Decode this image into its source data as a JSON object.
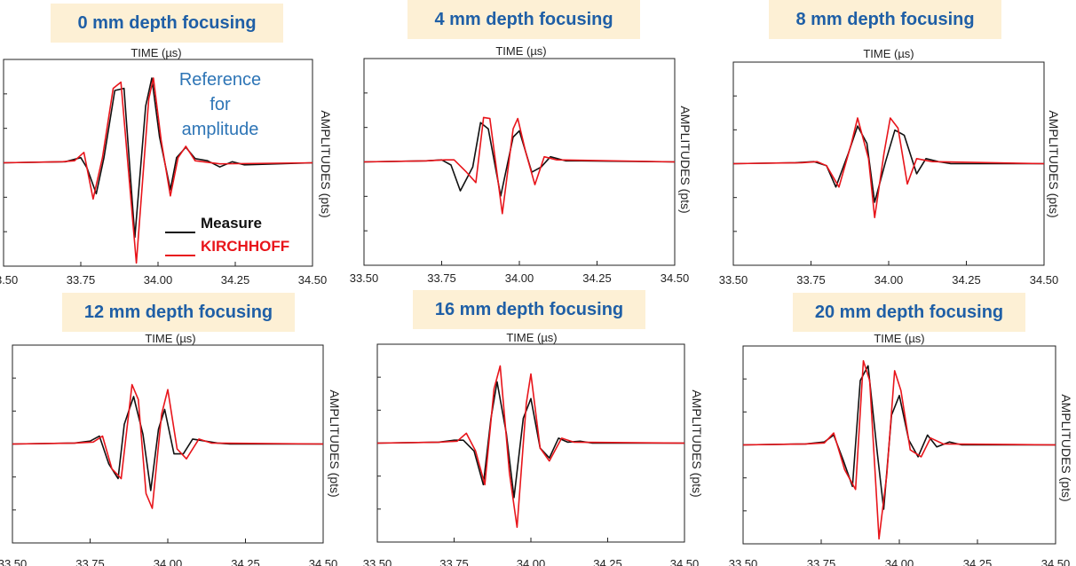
{
  "axis": {
    "x_label": "TIME (µs)",
    "y_label": "AMPLITUDES (pts)",
    "x_ticks": [
      "33.50",
      "33.75",
      "34.00",
      "34.25",
      "34.50"
    ]
  },
  "legend": {
    "measure_label": "Measure",
    "kirchhoff_label": "KIRCHHOFF",
    "measure_color": "#111111",
    "kirchhoff_color": "#e8151b"
  },
  "annotation": "Reference\nfor\namplitude",
  "chart_data": [
    {
      "type": "line",
      "title": "0 mm depth focusing",
      "xlim": [
        33.5,
        34.5
      ],
      "ylim": [
        -1,
        1
      ],
      "series": [
        {
          "name": "Measure",
          "x": [
            33.5,
            33.7,
            33.75,
            33.77,
            33.8,
            33.825,
            33.86,
            33.89,
            33.925,
            33.96,
            33.98,
            34.005,
            34.04,
            34.06,
            34.09,
            34.12,
            34.16,
            34.2,
            34.24,
            34.28,
            34.5
          ],
          "y": [
            0,
            0.01,
            0.05,
            -0.05,
            -0.3,
            0.05,
            0.7,
            0.72,
            -0.72,
            0.55,
            0.82,
            0.25,
            -0.26,
            0.05,
            0.15,
            0.04,
            0.02,
            -0.04,
            0.01,
            -0.02,
            0
          ]
        },
        {
          "name": "KIRCHHOFF",
          "x": [
            33.5,
            33.69,
            33.73,
            33.76,
            33.79,
            33.82,
            33.855,
            33.88,
            33.93,
            33.97,
            33.985,
            34.01,
            34.04,
            34.065,
            34.09,
            34.12,
            34.2,
            34.5
          ],
          "y": [
            0,
            0.01,
            0.02,
            0.1,
            -0.35,
            0.05,
            0.72,
            0.78,
            -0.97,
            0.62,
            0.82,
            0.22,
            -0.32,
            0.05,
            0.16,
            0.02,
            -0.01,
            0
          ]
        }
      ]
    },
    {
      "type": "line",
      "title": "4 mm depth focusing",
      "xlim": [
        33.5,
        34.5
      ],
      "ylim": [
        -1,
        1
      ],
      "series": [
        {
          "name": "Measure",
          "x": [
            33.5,
            33.7,
            33.75,
            33.78,
            33.81,
            33.85,
            33.875,
            33.9,
            33.94,
            33.98,
            34.0,
            34.04,
            34.07,
            34.1,
            34.15,
            34.2,
            34.5
          ],
          "y": [
            0,
            0.01,
            0.02,
            -0.03,
            -0.28,
            -0.05,
            0.38,
            0.32,
            -0.33,
            0.24,
            0.3,
            -0.1,
            -0.05,
            0.05,
            0.01,
            0.01,
            0
          ]
        },
        {
          "name": "KIRCHHOFF",
          "x": [
            33.5,
            33.7,
            33.76,
            33.79,
            33.83,
            33.86,
            33.885,
            33.905,
            33.945,
            33.98,
            33.995,
            34.02,
            34.05,
            34.08,
            34.12,
            34.5
          ],
          "y": [
            0,
            0.01,
            0.02,
            0.02,
            -0.1,
            -0.2,
            0.43,
            0.42,
            -0.5,
            0.32,
            0.42,
            0.1,
            -0.22,
            0.05,
            0.02,
            0
          ]
        }
      ]
    },
    {
      "type": "line",
      "title": "8 mm depth focusing",
      "xlim": [
        33.5,
        34.5
      ],
      "ylim": [
        -1,
        1
      ],
      "series": [
        {
          "name": "Measure",
          "x": [
            33.5,
            33.7,
            33.76,
            33.8,
            33.83,
            33.87,
            33.9,
            33.93,
            33.955,
            33.99,
            34.02,
            34.05,
            34.09,
            34.12,
            34.16,
            34.2,
            34.5
          ],
          "y": [
            0,
            0.01,
            0.02,
            -0.02,
            -0.23,
            0.1,
            0.37,
            0.2,
            -0.38,
            0.02,
            0.33,
            0.28,
            -0.1,
            0.05,
            0.02,
            0,
            0
          ]
        },
        {
          "name": "KIRCHHOFF",
          "x": [
            33.5,
            33.72,
            33.77,
            33.8,
            33.84,
            33.88,
            33.9,
            33.935,
            33.955,
            33.985,
            34.005,
            34.03,
            34.06,
            34.09,
            34.14,
            34.5
          ],
          "y": [
            0,
            0.01,
            0.02,
            -0.02,
            -0.23,
            0.2,
            0.45,
            0.05,
            -0.53,
            0.1,
            0.45,
            0.35,
            -0.2,
            0.05,
            0.02,
            0
          ]
        }
      ]
    },
    {
      "type": "line",
      "title": "12 mm depth focusing",
      "xlim": [
        33.5,
        34.5
      ],
      "ylim": [
        -1,
        1
      ],
      "series": [
        {
          "name": "Measure",
          "x": [
            33.5,
            33.7,
            33.75,
            33.78,
            33.81,
            33.84,
            33.86,
            33.89,
            33.92,
            33.945,
            33.97,
            33.99,
            34.02,
            34.05,
            34.08,
            34.12,
            34.16,
            34.2,
            34.5
          ],
          "y": [
            0,
            0.01,
            0.03,
            0.08,
            -0.2,
            -0.35,
            0.2,
            0.48,
            0.1,
            -0.47,
            0.15,
            0.35,
            -0.1,
            -0.1,
            0.05,
            0.03,
            0.01,
            0,
            0
          ]
        },
        {
          "name": "KIRCHHOFF",
          "x": [
            33.5,
            33.7,
            33.76,
            33.79,
            33.82,
            33.85,
            33.885,
            33.905,
            33.93,
            33.95,
            33.98,
            34.0,
            34.03,
            34.06,
            34.1,
            34.14,
            34.5
          ],
          "y": [
            0,
            0.01,
            0.02,
            0.08,
            -0.25,
            -0.35,
            0.6,
            0.45,
            -0.5,
            -0.65,
            0.3,
            0.55,
            -0.05,
            -0.15,
            0.05,
            0.01,
            0
          ]
        }
      ]
    },
    {
      "type": "line",
      "title": "16 mm depth focusing",
      "xlim": [
        33.5,
        34.5
      ],
      "ylim": [
        -1,
        1
      ],
      "series": [
        {
          "name": "Measure",
          "x": [
            33.5,
            33.7,
            33.75,
            33.78,
            33.815,
            33.845,
            33.87,
            33.89,
            33.92,
            33.945,
            33.975,
            34.0,
            34.03,
            34.06,
            34.09,
            34.12,
            34.16,
            34.2,
            34.5
          ],
          "y": [
            0,
            0.01,
            0.03,
            0.03,
            -0.08,
            -0.42,
            0.25,
            0.62,
            0.1,
            -0.55,
            0.25,
            0.45,
            -0.05,
            -0.15,
            0.05,
            0.01,
            0.02,
            0,
            0
          ]
        },
        {
          "name": "KIRCHHOFF",
          "x": [
            33.5,
            33.7,
            33.76,
            33.79,
            33.82,
            33.85,
            33.88,
            33.9,
            33.93,
            33.955,
            33.985,
            34.0,
            34.03,
            34.06,
            34.1,
            34.14,
            34.5
          ],
          "y": [
            0,
            0.01,
            0.02,
            0.1,
            -0.08,
            -0.42,
            0.55,
            0.78,
            -0.3,
            -0.85,
            0.4,
            0.7,
            -0.05,
            -0.18,
            0.05,
            0.01,
            0
          ]
        }
      ]
    },
    {
      "type": "line",
      "title": "20 mm depth focusing",
      "xlim": [
        33.5,
        34.5
      ],
      "ylim": [
        -1,
        1
      ],
      "series": [
        {
          "name": "Measure",
          "x": [
            33.5,
            33.7,
            33.76,
            33.79,
            33.82,
            33.85,
            33.875,
            33.9,
            33.93,
            33.95,
            33.975,
            34.0,
            34.03,
            34.06,
            34.09,
            34.12,
            34.16,
            34.2,
            34.5
          ],
          "y": [
            0,
            0.01,
            0.03,
            0.1,
            -0.15,
            -0.42,
            0.65,
            0.8,
            -0.1,
            -0.65,
            0.3,
            0.5,
            0.05,
            -0.12,
            0.1,
            -0.02,
            0.03,
            0,
            0
          ]
        },
        {
          "name": "KIRCHHOFF",
          "x": [
            33.5,
            33.7,
            33.76,
            33.79,
            33.825,
            33.86,
            33.885,
            33.905,
            33.935,
            33.96,
            33.985,
            34.005,
            34.035,
            34.07,
            34.1,
            34.14,
            34.5
          ],
          "y": [
            0,
            0.01,
            0.02,
            0.12,
            -0.25,
            -0.45,
            0.85,
            0.65,
            -0.95,
            -0.3,
            0.75,
            0.55,
            -0.05,
            -0.12,
            0.07,
            0.01,
            0
          ]
        }
      ]
    }
  ]
}
